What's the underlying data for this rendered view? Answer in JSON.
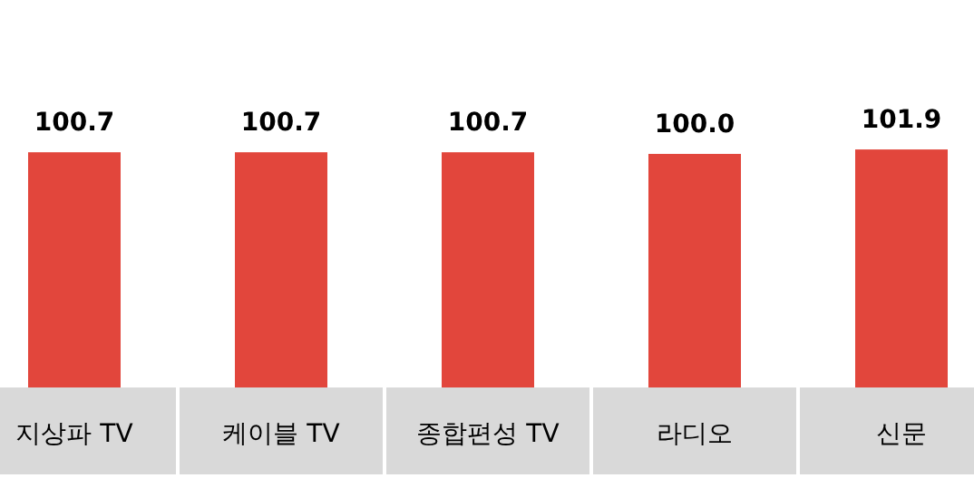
{
  "chart_data": {
    "type": "bar",
    "categories": [
      "지상파 TV",
      "케이블 TV",
      "종합편성 TV",
      "라디오",
      "신문"
    ],
    "series": [
      {
        "color": "#e2463c",
        "values": [
          100.7,
          100.7,
          100.7,
          100.0,
          101.9
        ],
        "value_labels": [
          "100.7",
          "100.7",
          "100.7",
          "100.0",
          "101.9"
        ]
      }
    ]
  }
}
